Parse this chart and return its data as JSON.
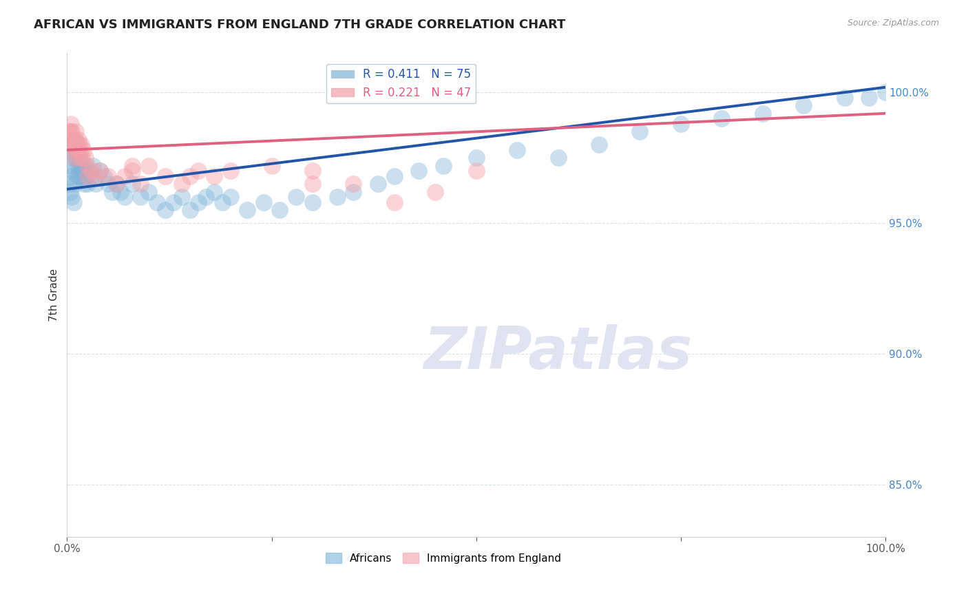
{
  "title": "AFRICAN VS IMMIGRANTS FROM ENGLAND 7TH GRADE CORRELATION CHART",
  "source": "Source: ZipAtlas.com",
  "ylabel": "7th Grade",
  "xlim": [
    0.0,
    100.0
  ],
  "ylim": [
    83.0,
    101.5
  ],
  "yticks": [
    85.0,
    90.0,
    95.0,
    100.0
  ],
  "ytick_labels": [
    "85.0%",
    "90.0%",
    "95.0%",
    "100.0%"
  ],
  "legend_blue_label": "R = 0.411   N = 75",
  "legend_pink_label": "R = 0.221   N = 47",
  "africans_legend": "Africans",
  "england_legend": "Immigrants from England",
  "blue_color": "#7EB3D8",
  "pink_color": "#F4A0A8",
  "blue_line_color": "#2255AA",
  "pink_line_color": "#E06080",
  "watermark_color": "#E0E4F0",
  "africans_x": [
    0.3,
    0.4,
    0.5,
    0.5,
    0.6,
    0.7,
    0.8,
    0.9,
    1.0,
    1.1,
    1.2,
    1.3,
    1.4,
    1.5,
    1.6,
    1.7,
    1.8,
    1.9,
    2.0,
    2.1,
    2.2,
    2.3,
    2.5,
    2.7,
    3.0,
    3.2,
    3.5,
    4.0,
    4.5,
    5.0,
    5.5,
    6.0,
    6.5,
    7.0,
    8.0,
    9.0,
    10.0,
    11.0,
    12.0,
    13.0,
    14.0,
    15.0,
    16.0,
    17.0,
    18.0,
    19.0,
    20.0,
    22.0,
    24.0,
    26.0,
    28.0,
    30.0,
    33.0,
    35.0,
    38.0,
    40.0,
    43.0,
    46.0,
    50.0,
    55.0,
    60.0,
    65.0,
    70.0,
    75.0,
    80.0,
    85.0,
    90.0,
    95.0,
    98.0,
    100.0,
    0.4,
    0.6,
    0.8,
    1.0,
    1.5
  ],
  "africans_y": [
    96.5,
    96.8,
    97.2,
    97.8,
    97.5,
    98.0,
    97.0,
    98.2,
    97.5,
    97.8,
    96.8,
    97.5,
    97.2,
    97.0,
    97.5,
    97.2,
    97.0,
    96.8,
    97.0,
    96.5,
    97.2,
    96.8,
    96.5,
    97.0,
    96.8,
    97.2,
    96.5,
    97.0,
    96.8,
    96.5,
    96.2,
    96.5,
    96.2,
    96.0,
    96.5,
    96.0,
    96.2,
    95.8,
    95.5,
    95.8,
    96.0,
    95.5,
    95.8,
    96.0,
    96.2,
    95.8,
    96.0,
    95.5,
    95.8,
    95.5,
    96.0,
    95.8,
    96.0,
    96.2,
    96.5,
    96.8,
    97.0,
    97.2,
    97.5,
    97.8,
    97.5,
    98.0,
    98.5,
    98.8,
    99.0,
    99.2,
    99.5,
    99.8,
    99.8,
    100.0,
    96.2,
    96.0,
    95.8,
    96.5,
    96.8
  ],
  "england_x": [
    0.2,
    0.3,
    0.4,
    0.5,
    0.6,
    0.7,
    0.8,
    0.9,
    1.0,
    1.1,
    1.2,
    1.3,
    1.4,
    1.5,
    1.6,
    1.7,
    1.8,
    2.0,
    2.2,
    2.5,
    3.0,
    3.5,
    4.0,
    5.0,
    6.0,
    7.0,
    8.0,
    9.0,
    10.0,
    12.0,
    14.0,
    16.0,
    18.0,
    20.0,
    25.0,
    30.0,
    35.0,
    40.0,
    45.0,
    50.0,
    30.0,
    15.0,
    8.0,
    2.5,
    1.5,
    1.0,
    0.8
  ],
  "england_y": [
    98.5,
    98.2,
    98.5,
    98.8,
    98.5,
    98.2,
    98.0,
    97.8,
    98.2,
    98.5,
    98.0,
    97.8,
    98.2,
    98.0,
    97.8,
    98.0,
    97.5,
    97.8,
    97.5,
    97.2,
    97.0,
    96.8,
    97.0,
    96.8,
    96.5,
    96.8,
    97.0,
    96.5,
    97.2,
    96.8,
    96.5,
    97.0,
    96.8,
    97.0,
    97.2,
    97.0,
    96.5,
    95.8,
    96.2,
    97.0,
    96.5,
    96.8,
    97.2,
    96.8,
    97.5,
    98.0,
    97.5
  ]
}
